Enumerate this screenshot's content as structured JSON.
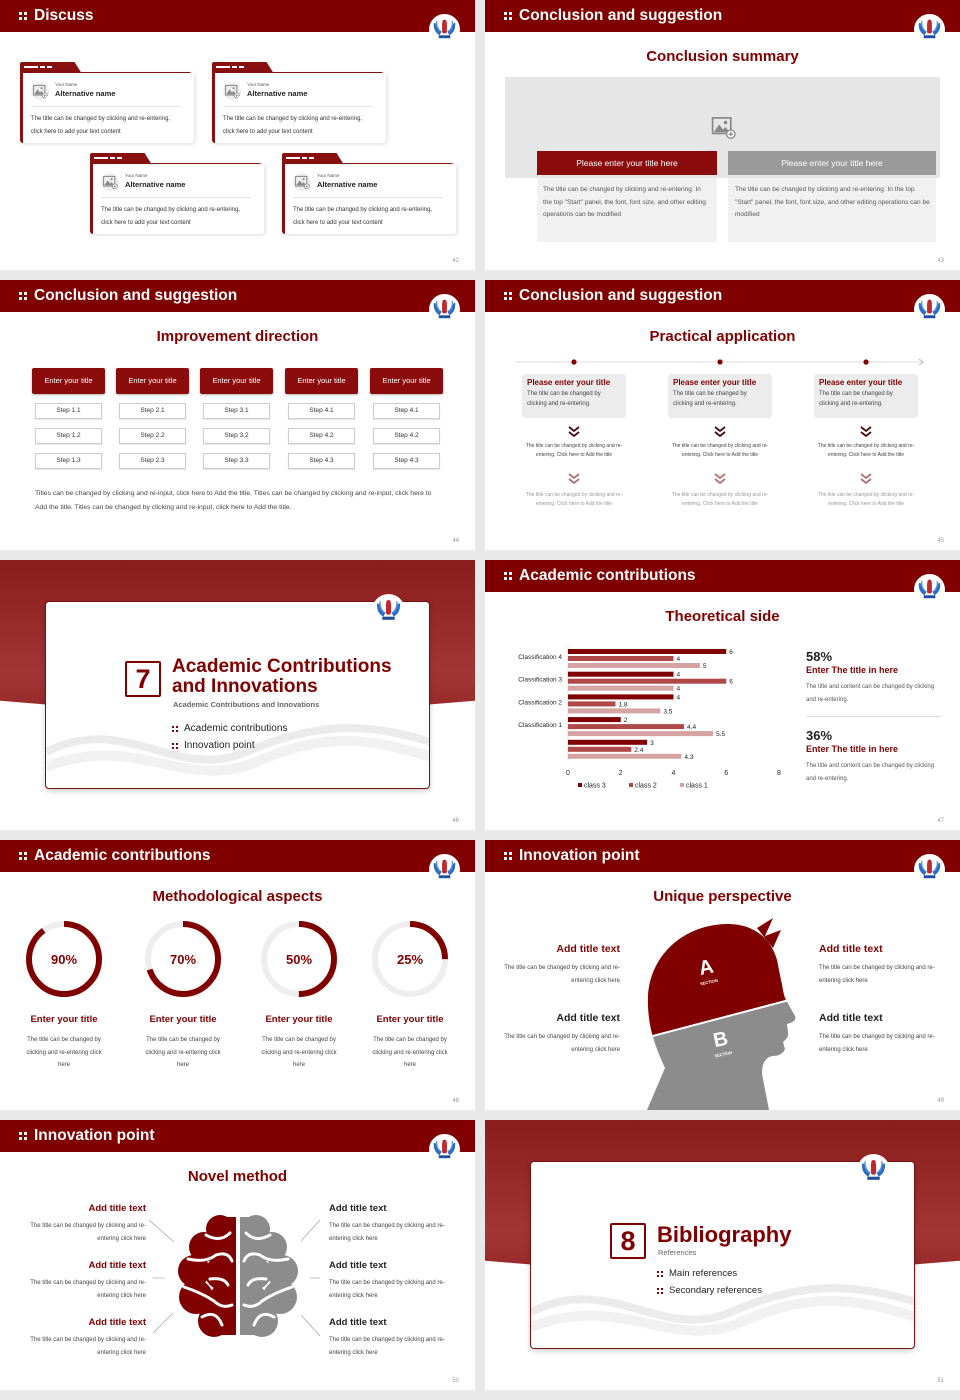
{
  "colors": {
    "primary": "#800000",
    "class3": "#800000",
    "class2": "#b04848",
    "class1": "#d6a3a3",
    "gray": "#8c8c8c",
    "logo_blue": "#2b6cc4"
  },
  "s42": {
    "title": "Discuss",
    "page": "42",
    "cards": [
      {
        "label": "Your Name",
        "name": "Alternative name",
        "text": "The title can be changed by clicking and re-entering, click here to add your text content"
      },
      {
        "label": "Your Name",
        "name": "Alternative name",
        "text": "The title can be changed by clicking and re-entering, click here to add your text content"
      },
      {
        "label": "Your Name",
        "name": "Alternative name",
        "text": "The title can be changed by clicking and re-entering, click here to add your text content"
      },
      {
        "label": "Your Name",
        "name": "Alternative name",
        "text": "The title can be changed by clicking and re-entering, click here to add your text content"
      }
    ]
  },
  "s43": {
    "title": "Conclusion and suggestion",
    "heading": "Conclusion summary",
    "page": "43",
    "buttons": [
      "Please enter your title here",
      "Please enter your title here"
    ],
    "texts": [
      "The title can be changed by clicking and re-entering. In the top \"Start\" panel, the font, font size, and other editing operations can be modified",
      "The title can be changed by clicking and re-entering. In the top \"Start\" panel, the font, font size, and other editing operations can be modified"
    ]
  },
  "s44": {
    "title": "Conclusion and suggestion",
    "heading": "Improvement direction",
    "page": "44",
    "columns": [
      {
        "header": "Enter your title",
        "steps": [
          "Step 1.1",
          "Step 1.2",
          "Step 1.3"
        ]
      },
      {
        "header": "Enter your title",
        "steps": [
          "Step 2.1",
          "Step 2.2",
          "Step 2.3"
        ]
      },
      {
        "header": "Enter your title",
        "steps": [
          "Step 3.1",
          "Step 3.2",
          "Step 3.3"
        ]
      },
      {
        "header": "Enter your title",
        "steps": [
          "Step 4.1",
          "Step 4.2",
          "Step 4.3"
        ]
      },
      {
        "header": "Enter your title",
        "steps": [
          "Step 4.1",
          "Step 4.2",
          "Step 4.3"
        ]
      }
    ],
    "paragraph": "Titles can be changed by clicking and re-input, click here to Add the title. Titles can be changed by clicking and re-input, click here to Add the title. Titles can be changed by clicking and re-input, click here to Add the title."
  },
  "s45": {
    "title": "Conclusion and suggestion",
    "heading": "Practical application",
    "page": "45",
    "items": [
      {
        "title": "Please enter your title",
        "text": "The title can be changed by clicking and re-entering.",
        "detail1": "The title can be changed by clicking and re-entering. Click here to Add the title",
        "detail2": "The title can be changed by clicking and re-entering. Click here to Add the title"
      },
      {
        "title": "Please enter your title",
        "text": "The title can be changed by clicking and re-entering.",
        "detail1": "The title can be changed by clicking and re-entering. Click here to Add the title",
        "detail2": "The title can be changed by clicking and re-entering. Click here to Add the title"
      },
      {
        "title": "Please enter your title",
        "text": "The title can be changed by clicking and re-entering.",
        "detail1": "The title can be changed by clicking and re-entering. Click here to Add the title",
        "detail2": "The title can be changed by clicking and re-entering. Click here to Add the title"
      }
    ]
  },
  "s46": {
    "number": "7",
    "title": "Academic Contributions and Innovations",
    "subtitle": "Academic Contributions and Innovations",
    "bullets": [
      "Academic contributions",
      "Innovation point"
    ],
    "page": "46"
  },
  "s47": {
    "title": "Academic contributions",
    "heading": "Theoretical side",
    "page": "47",
    "stats": [
      {
        "value": "58%",
        "title": "Enter The title in here",
        "text": "The title and content can be changed by clicking and re-entering."
      },
      {
        "value": "36%",
        "title": "Enter The title in here",
        "text": "The title and content can be changed by clicking and re-entering."
      }
    ]
  },
  "chart_data": {
    "type": "bar",
    "orientation": "horizontal",
    "categories": [
      "Classification 4",
      "Classification 3",
      "Classification 2",
      "Classification 1",
      ""
    ],
    "series": [
      {
        "name": "class 3",
        "values": [
          6,
          4,
          4,
          2,
          3
        ]
      },
      {
        "name": "class 2",
        "values": [
          4,
          6,
          1.8,
          4.4,
          2.4
        ]
      },
      {
        "name": "class 1",
        "values": [
          5,
          4,
          3.5,
          5.5,
          4.3
        ]
      }
    ],
    "xlim": [
      0,
      8
    ],
    "xticks": [
      "0",
      "2",
      "4",
      "6",
      "8"
    ],
    "grid": false,
    "legend": "bottom",
    "data_labels": true
  },
  "s48": {
    "title": "Academic contributions",
    "heading": "Methodological aspects",
    "page": "48",
    "items": [
      {
        "percent": 90,
        "label": "90%",
        "title": "Enter your title",
        "text": "The title can be changed by clicking and re-entering click here"
      },
      {
        "percent": 70,
        "label": "70%",
        "title": "Enter your title",
        "text": "The title can be changed by clicking and re-entering click here"
      },
      {
        "percent": 50,
        "label": "50%",
        "title": "Enter your title",
        "text": "The title can be changed by clicking and re-entering click here"
      },
      {
        "percent": 25,
        "label": "25%",
        "title": "Enter your title",
        "text": "The title can be changed by clicking and re-entering click here"
      }
    ]
  },
  "s49": {
    "title": "Innovation point",
    "heading": "Unique perspective",
    "page": "49",
    "head": {
      "a": "A",
      "b": "B",
      "section": "SECTION"
    },
    "left": [
      {
        "title": "Add title text",
        "text": "The title can be changed by clicking and re-entering click here"
      },
      {
        "title": "Add title text",
        "text": "The title can be changed by clicking and re-entering click here"
      }
    ],
    "right": [
      {
        "title": "Add title text",
        "text": "The title can be changed by clicking and re-entering click here"
      },
      {
        "title": "Add title text",
        "text": "The title can be changed by clicking and re-entering click here"
      }
    ]
  },
  "s50": {
    "title": "Innovation point",
    "heading": "Novel method",
    "page": "50",
    "left": [
      {
        "title": "Add title text",
        "text": "The title can be changed by clicking and re-entering click here"
      },
      {
        "title": "Add title text",
        "text": "The title can be changed by clicking and re-entering click here"
      },
      {
        "title": "Add title text",
        "text": "The title can be changed by clicking and re-entering click here"
      }
    ],
    "right": [
      {
        "title": "Add title text",
        "text": "The title can be changed by clicking and re-entering click here"
      },
      {
        "title": "Add title text",
        "text": "The title can be changed by clicking and re-entering click here"
      },
      {
        "title": "Add title text",
        "text": "The title can be changed by clicking and re-entering click here"
      }
    ]
  },
  "s51": {
    "number": "8",
    "title": "Bibliography",
    "subtitle": "References",
    "bullets": [
      "Main references",
      "Secondary references"
    ],
    "page": "51"
  }
}
